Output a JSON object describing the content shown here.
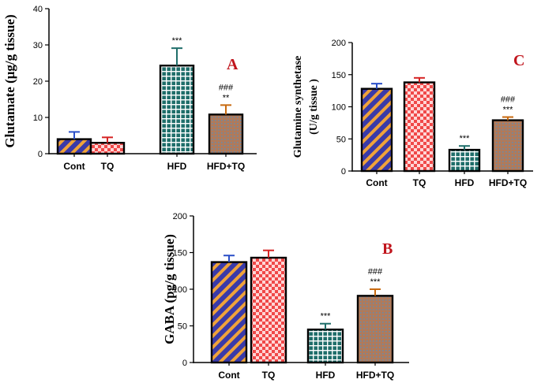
{
  "colors": {
    "panel_letter": "#c0141c",
    "cont_fill": "#3a3aa8",
    "cont_stripe": "#f0a33a",
    "cont_err": "#2a4fc8",
    "tq_fill": "#f04848",
    "tq_check": "#ffd6d6",
    "tq_err": "#d62424",
    "hfd_fill": "#1f6e6a",
    "hfd_grid": "#ffffff",
    "hfd_err": "#1f6e6a",
    "hfdtq_fill": "#b07a5a",
    "hfdtq_dot": "#6a8aa8",
    "hfdtq_err": "#c86a10"
  },
  "chart_data": [
    {
      "panel": "A",
      "type": "bar",
      "ylabel": "Glutamate (μg/g tissue)",
      "ylim": [
        0,
        40
      ],
      "yticks": [
        0,
        10,
        20,
        30,
        40
      ],
      "categories": [
        "Cont",
        "TQ",
        "HFD",
        "HFD+TQ"
      ],
      "series": [
        {
          "values": [
            4,
            3,
            24.3,
            10.8
          ],
          "errors": [
            2,
            1.5,
            4.8,
            2.6
          ]
        }
      ],
      "annotations": [
        [],
        [],
        [
          "***"
        ],
        [
          "###",
          "**"
        ]
      ]
    },
    {
      "panel": "C",
      "type": "bar",
      "ylabel": [
        "Glutamine synthetase",
        "(U/g tissue )"
      ],
      "ylim": [
        0,
        200
      ],
      "yticks": [
        0,
        50,
        100,
        150,
        200
      ],
      "categories": [
        "Cont",
        "TQ",
        "HFD",
        "HFD+TQ"
      ],
      "series": [
        {
          "values": [
            128,
            138,
            33,
            79
          ],
          "errors": [
            8,
            7,
            6,
            5
          ]
        }
      ],
      "annotations": [
        [],
        [],
        [
          "***"
        ],
        [
          "###",
          "***"
        ]
      ]
    },
    {
      "panel": "B",
      "type": "bar",
      "ylabel": "GABA (pg/g tissue)",
      "ylim": [
        0,
        200
      ],
      "yticks": [
        0,
        50,
        100,
        150,
        200
      ],
      "categories": [
        "Cont",
        "TQ",
        "HFD",
        "HFD+TQ"
      ],
      "series": [
        {
          "values": [
            137,
            143,
            45,
            91
          ],
          "errors": [
            9,
            10,
            8,
            9
          ]
        }
      ],
      "annotations": [
        [],
        [],
        [
          "***"
        ],
        [
          "###",
          "***"
        ]
      ]
    }
  ]
}
